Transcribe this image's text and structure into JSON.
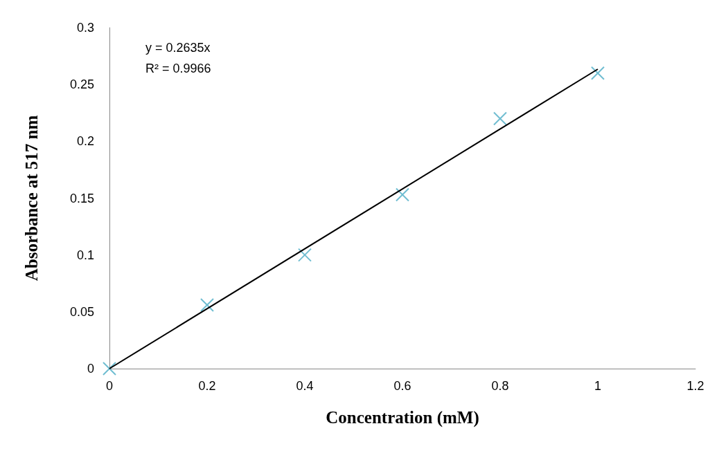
{
  "chart_data": {
    "type": "scatter",
    "xlabel": "Concentration (mM)",
    "ylabel": "Absorbance at 517 nm",
    "annotations": [
      "y = 0.2635x",
      "R² = 0.9966"
    ],
    "series": [
      {
        "color": "#4bacc6",
        "marker": "cross",
        "x": [
          0,
          0.2,
          0.4,
          0.6,
          0.8,
          1
        ],
        "values": [
          0,
          0.056,
          0.1,
          0.153,
          0.22,
          0.26
        ]
      },
      {
        "type": "line",
        "color": "#000000",
        "marker": "none",
        "x": [
          0,
          1
        ],
        "values": [
          0,
          0.2635
        ]
      }
    ],
    "xlim": [
      0,
      1.2
    ],
    "xticks": [
      0,
      0.2,
      0.4,
      0.6,
      0.8,
      1,
      1.2
    ],
    "ylim": [
      0,
      0.3
    ],
    "yticks": [
      0,
      0.05,
      0.1,
      0.15,
      0.2,
      0.25,
      0.3
    ],
    "grid": false
  }
}
